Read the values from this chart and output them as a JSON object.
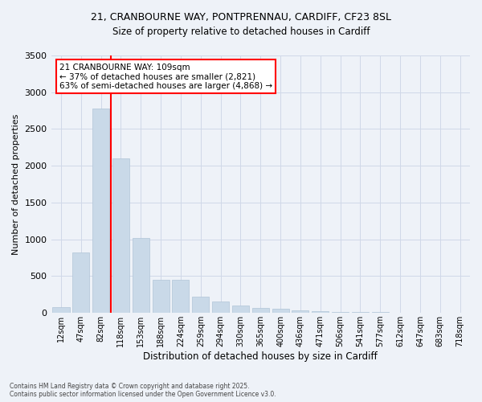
{
  "title_line1": "21, CRANBOURNE WAY, PONTPRENNAU, CARDIFF, CF23 8SL",
  "title_line2": "Size of property relative to detached houses in Cardiff",
  "xlabel": "Distribution of detached houses by size in Cardiff",
  "ylabel": "Number of detached properties",
  "categories": [
    "12sqm",
    "47sqm",
    "82sqm",
    "118sqm",
    "153sqm",
    "188sqm",
    "224sqm",
    "259sqm",
    "294sqm",
    "330sqm",
    "365sqm",
    "400sqm",
    "436sqm",
    "471sqm",
    "506sqm",
    "541sqm",
    "577sqm",
    "612sqm",
    "647sqm",
    "683sqm",
    "718sqm"
  ],
  "values": [
    75,
    820,
    2780,
    2100,
    1020,
    450,
    450,
    215,
    150,
    100,
    65,
    60,
    30,
    20,
    15,
    10,
    8,
    5,
    4,
    3,
    2
  ],
  "bar_color": "#c9d9e8",
  "bar_edge_color": "#b0c4d8",
  "grid_color": "#d0d8e8",
  "background_color": "#eef2f8",
  "vline_color": "red",
  "annotation_text": "21 CRANBOURNE WAY: 109sqm\n← 37% of detached houses are smaller (2,821)\n63% of semi-detached houses are larger (4,868) →",
  "annotation_box_color": "white",
  "annotation_box_edge_color": "red",
  "ylim": [
    0,
    3500
  ],
  "yticks": [
    0,
    500,
    1000,
    1500,
    2000,
    2500,
    3000,
    3500
  ],
  "footnote": "Contains HM Land Registry data © Crown copyright and database right 2025.\nContains public sector information licensed under the Open Government Licence v3.0."
}
